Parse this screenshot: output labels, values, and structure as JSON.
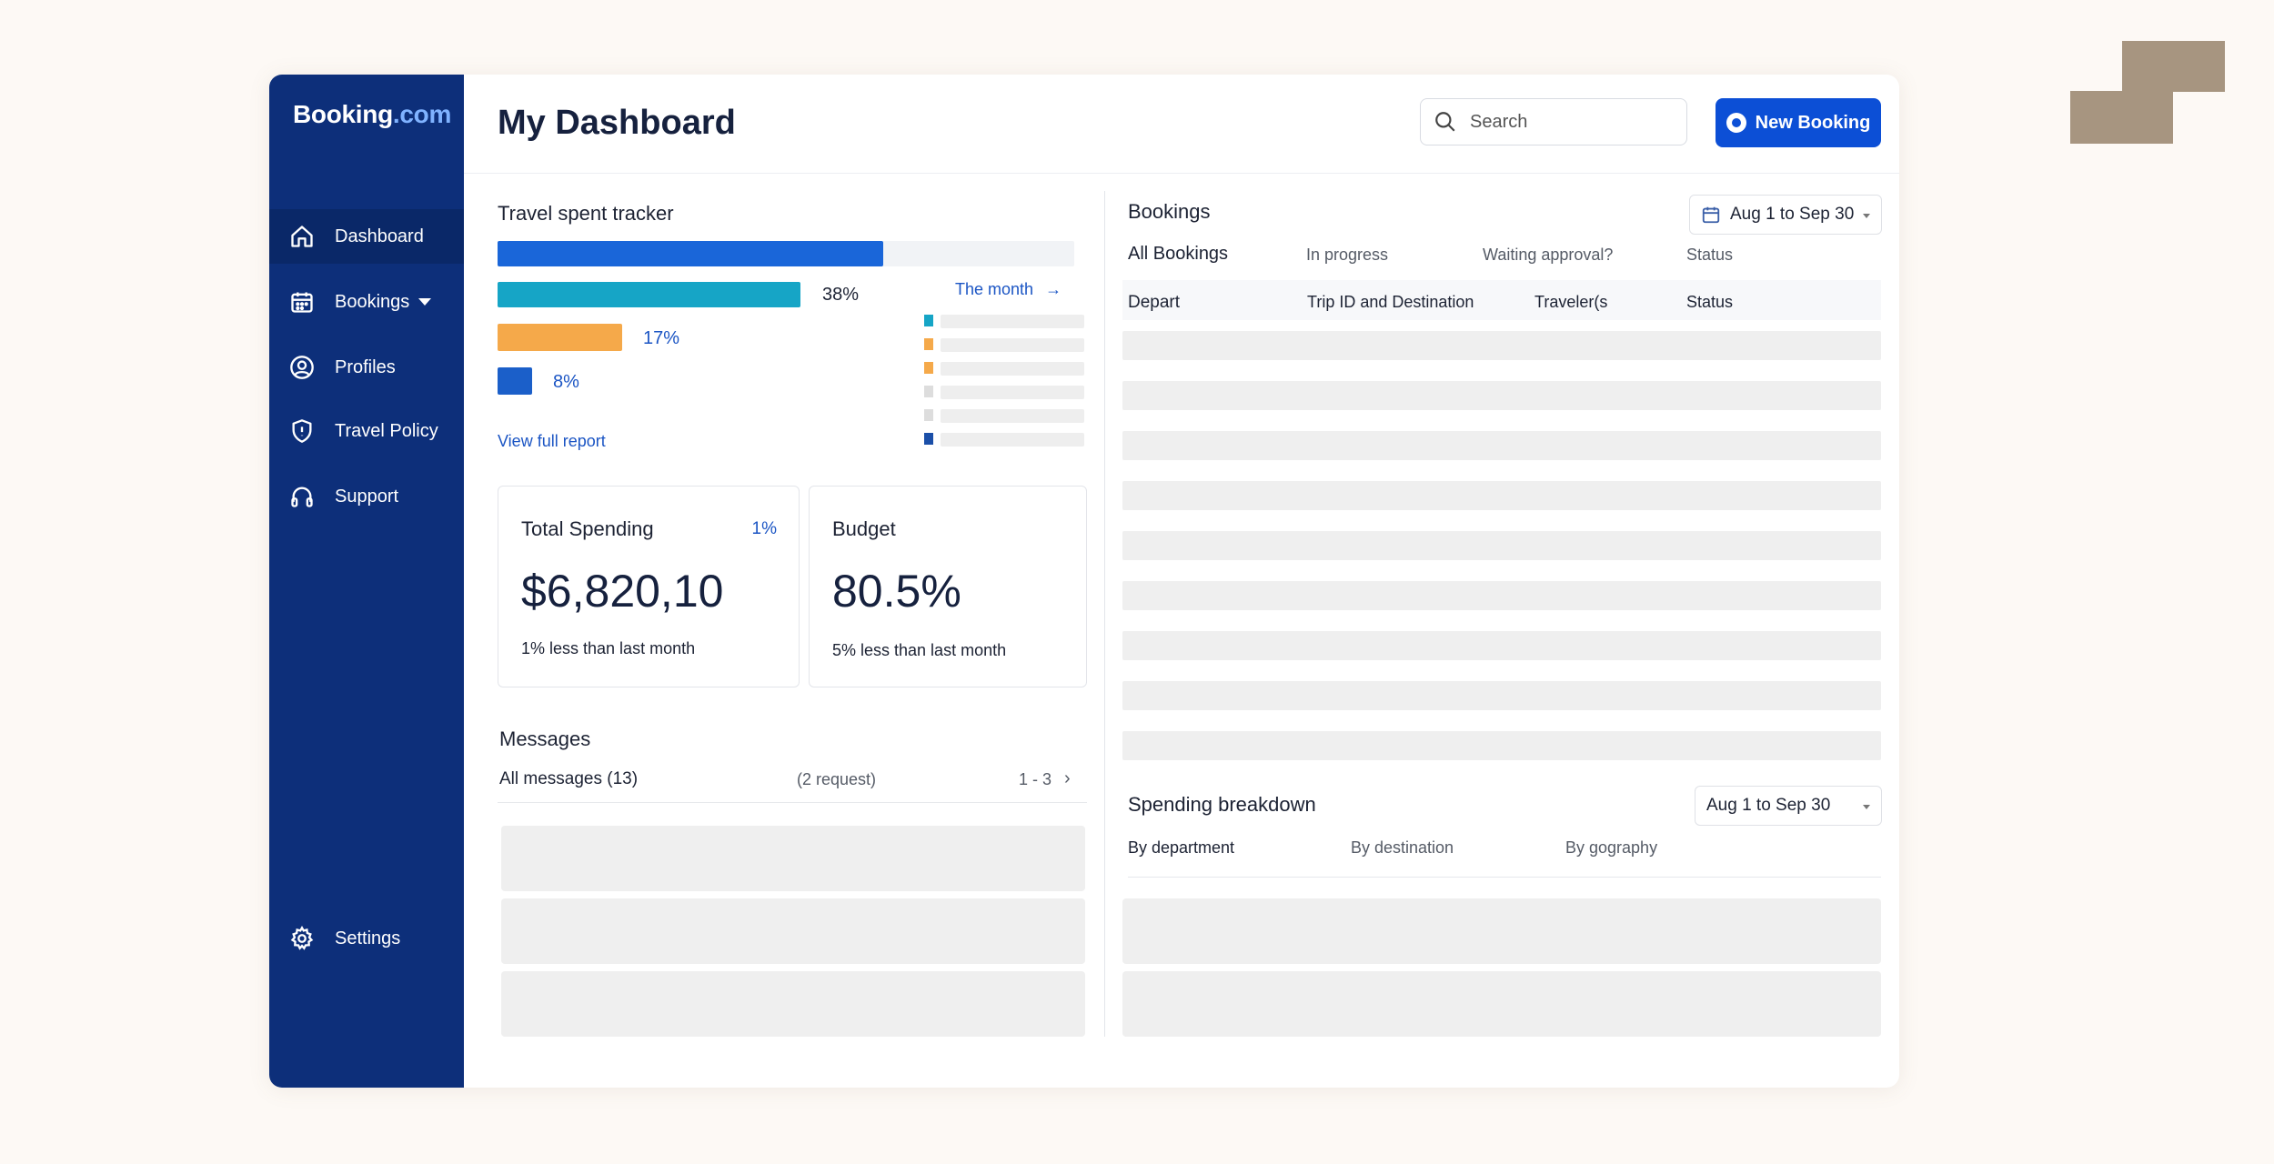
{
  "app": {
    "brand_main": "Booking",
    "brand_suffix": ".com"
  },
  "sidebar": {
    "items": [
      {
        "label": "Dashboard",
        "icon": "home-icon",
        "active": true
      },
      {
        "label": "Bookings",
        "icon": "calendar-icon",
        "has_dropdown": true
      },
      {
        "label": "Profiles",
        "icon": "user-circle-icon"
      },
      {
        "label": "Travel Policy",
        "icon": "shield-icon"
      },
      {
        "label": "Support",
        "icon": "headphones-icon"
      }
    ],
    "settings_label": "Settings"
  },
  "header": {
    "title": "My Dashboard",
    "search_placeholder": "Search",
    "new_booking_label": "New Booking"
  },
  "tracker": {
    "title": "Travel spent tracker",
    "bars": [
      {
        "percent": 67,
        "label": "",
        "color": "#1a66d9"
      },
      {
        "percent": 38,
        "label": "38%",
        "color": "#16a5c6"
      },
      {
        "percent": 17,
        "label": "17%",
        "color": "#f5a94a"
      },
      {
        "percent": 8,
        "label": "8%",
        "color": "#1b5fc9"
      }
    ],
    "period_label": "The month",
    "legend_colors": [
      "#16a5c6",
      "#f5a94a",
      "#f5a94a",
      "#dddddd",
      "#dddddd",
      "#1b4fa8"
    ],
    "view_report_label": "View full report"
  },
  "total_spending": {
    "title": "Total Spending",
    "badge": "1%",
    "value": "$6,820,10",
    "sub": "1% less than last month"
  },
  "budget": {
    "title": "Budget",
    "value": "80.5%",
    "sub": "5% less than last month"
  },
  "messages": {
    "title": "Messages",
    "all_label": "All messages (13)",
    "request_label": "(2 request)",
    "pagination": "1 - 3"
  },
  "bookings": {
    "title": "Bookings",
    "date_range": "Aug 1 to Sep 30",
    "tabs": [
      "All Bookings",
      "In progress",
      "Waiting approval?",
      "Status"
    ],
    "columns": [
      "Depart",
      "Trip ID and Destination",
      "Traveler(s",
      "Status"
    ]
  },
  "spending_breakdown": {
    "title": "Spending breakdown",
    "date_range": "Aug 1 to Sep 30",
    "tabs": [
      "By department",
      "By destination",
      "By gography"
    ]
  }
}
